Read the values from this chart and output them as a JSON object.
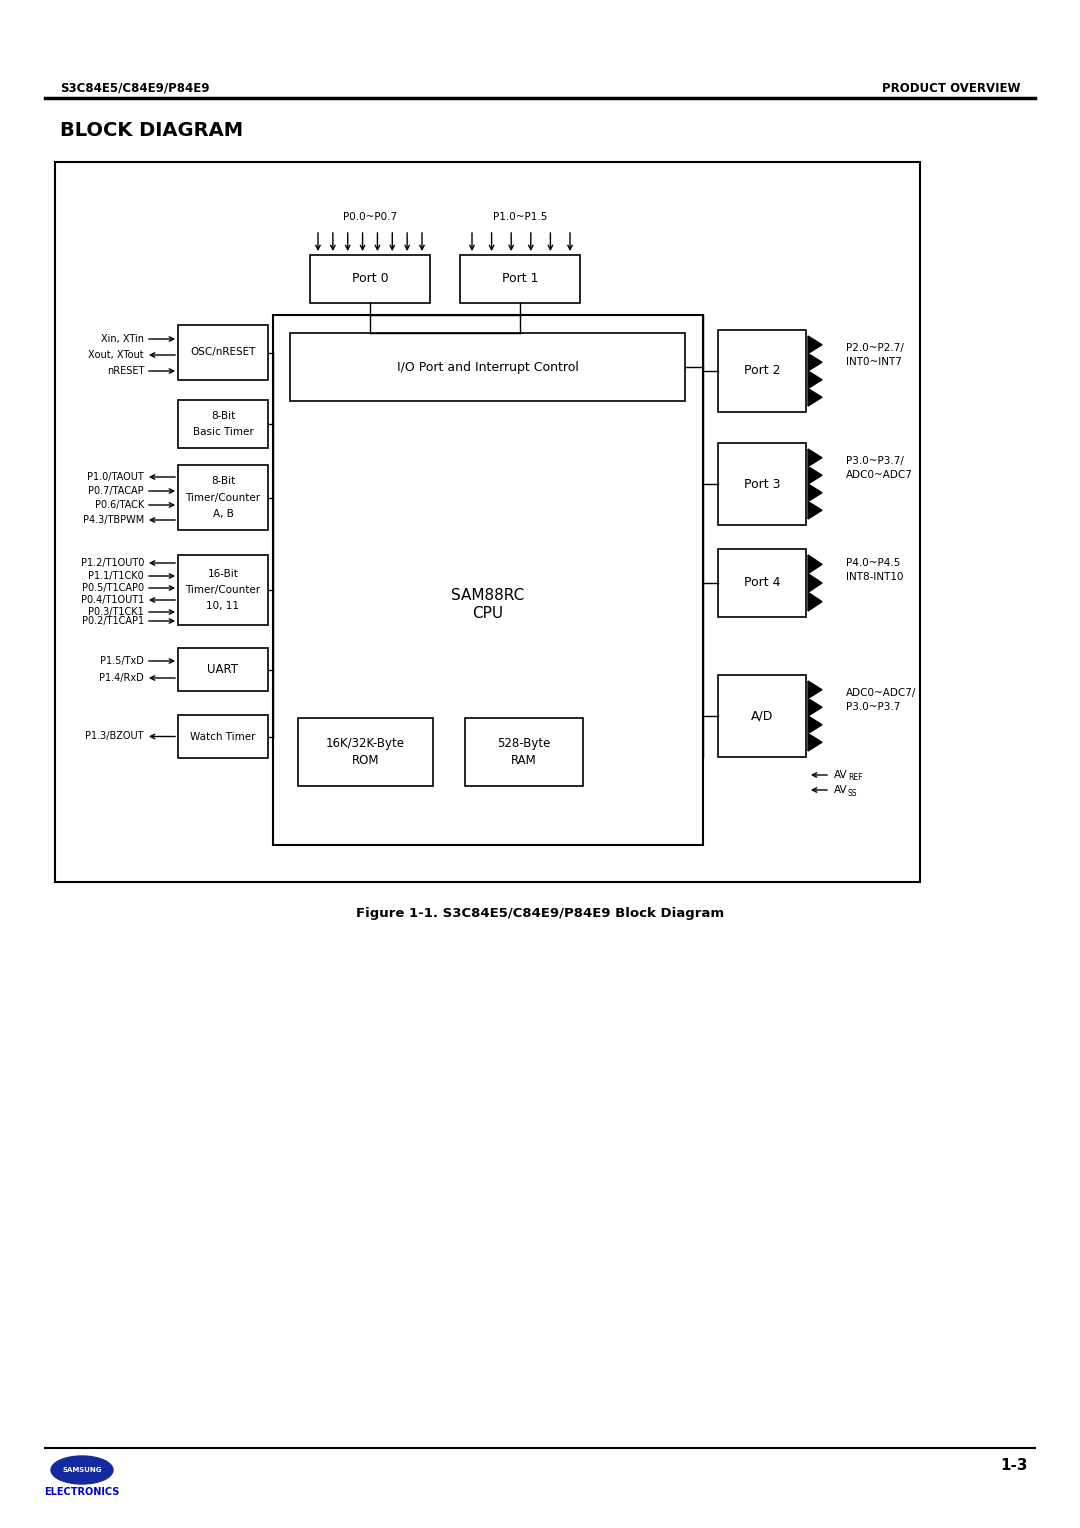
{
  "page_title_left": "S3C84E5/C84E9/P84E9",
  "page_title_right": "PRODUCT OVERVIEW",
  "section_title": "BLOCK DIAGRAM",
  "figure_caption": "Figure 1-1. S3C84E5/C84E9/P84E9 Block Diagram",
  "page_number": "1-3",
  "bg_color": "#ffffff",
  "box_color": "#000000",
  "samsung_blue": "#0000cc"
}
